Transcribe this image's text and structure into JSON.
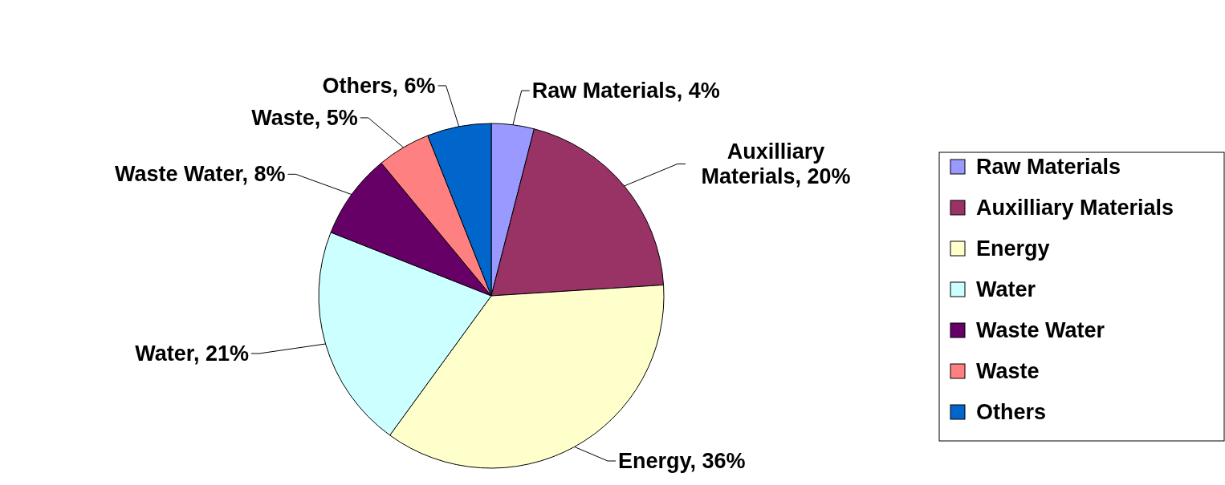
{
  "chart_data": {
    "type": "pie",
    "categories": [
      "Raw Materials",
      "Auxilliary Materials",
      "Energy",
      "Water",
      "Waste Water",
      "Waste",
      "Others"
    ],
    "values": [
      4,
      20,
      36,
      21,
      8,
      5,
      6
    ],
    "colors": [
      "#9999ff",
      "#993366",
      "#ffffcc",
      "#ccffff",
      "#660066",
      "#ff8080",
      "#0066cc"
    ],
    "value_labels": [
      "Raw Materials, 4%",
      "Auxilliary Materials, 20%",
      "Energy, 36%",
      "Water, 21%",
      "Waste Water, 8%",
      "Waste, 5%",
      "Others, 6%"
    ],
    "legend": "right"
  }
}
